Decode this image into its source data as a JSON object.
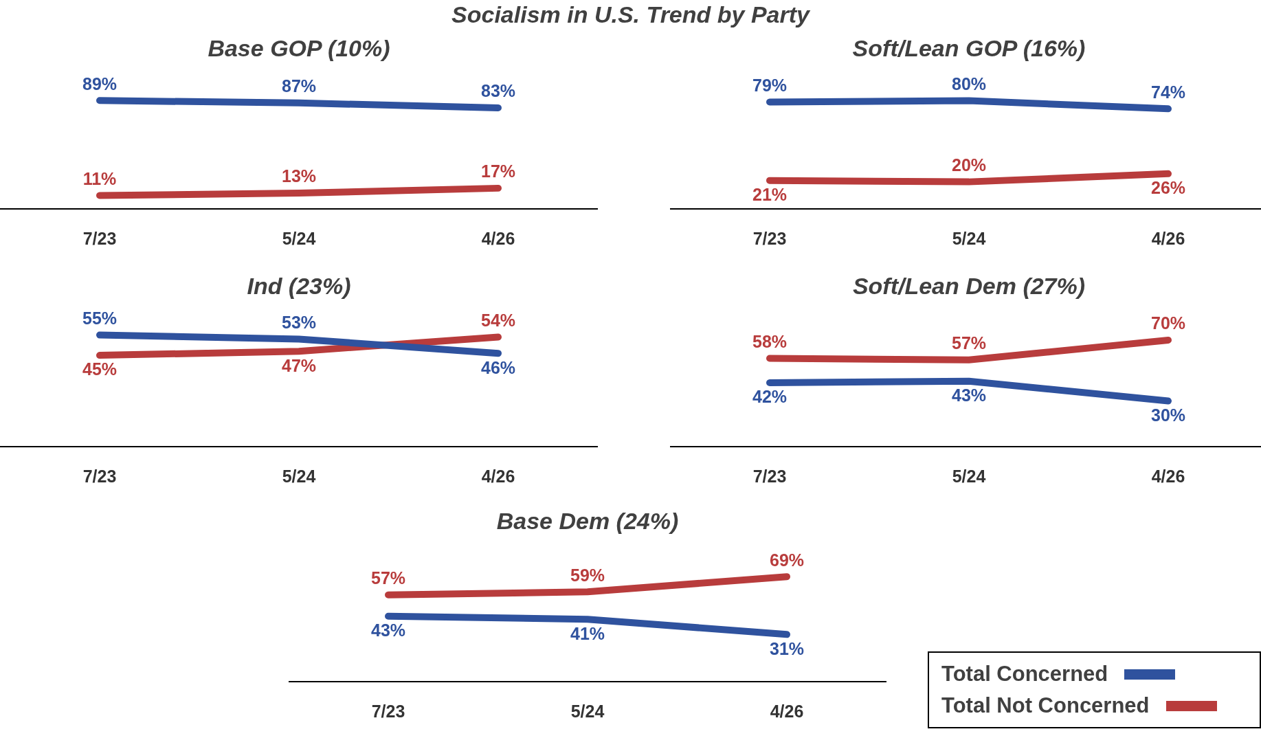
{
  "chart_data": [
    {
      "type": "line",
      "title": "Base GOP (10%)",
      "annotations": [
        "Socialism in U.S. Trend by Party"
      ],
      "categories": [
        "7/23",
        "5/24",
        "4/26"
      ],
      "tick_labels": "x",
      "grid": false,
      "series": [
        {
          "color": "#2f529e",
          "values": [
            89,
            87,
            83
          ],
          "value_labels": [
            "89%",
            "87%",
            "83%"
          ]
        },
        {
          "color": "#b83c3c",
          "values": [
            11,
            13,
            17
          ],
          "value_labels": [
            "11%",
            "13%",
            "17%"
          ]
        }
      ]
    },
    {
      "type": "line",
      "title": "Soft/Lean GOP (16%)",
      "categories": [
        "7/23",
        "5/24",
        "4/26"
      ],
      "tick_labels": "x",
      "grid": false,
      "series": [
        {
          "color": "#2f529e",
          "values": [
            79,
            80,
            74
          ],
          "value_labels": [
            "79%",
            "80%",
            "74%"
          ]
        },
        {
          "color": "#b83c3c",
          "values": [
            21,
            20,
            26
          ],
          "value_labels": [
            "21%",
            "20%",
            "26%"
          ]
        }
      ]
    },
    {
      "type": "line",
      "title": "Ind (23%)",
      "categories": [
        "7/23",
        "5/24",
        "4/26"
      ],
      "tick_labels": "x",
      "grid": false,
      "series": [
        {
          "color": "#2f529e",
          "values": [
            55,
            53,
            46
          ],
          "value_labels": [
            "55%",
            "53%",
            "46%"
          ]
        },
        {
          "color": "#b83c3c",
          "values": [
            45,
            47,
            54
          ],
          "value_labels": [
            "45%",
            "47%",
            "54%"
          ]
        }
      ]
    },
    {
      "type": "line",
      "title": "Soft/Lean Dem (27%)",
      "categories": [
        "7/23",
        "5/24",
        "4/26"
      ],
      "tick_labels": "x",
      "grid": false,
      "series": [
        {
          "color": "#2f529e",
          "values": [
            42,
            43,
            30
          ],
          "value_labels": [
            "42%",
            "43%",
            "30%"
          ]
        },
        {
          "color": "#b83c3c",
          "values": [
            58,
            57,
            70
          ],
          "value_labels": [
            "58%",
            "57%",
            "70%"
          ]
        }
      ]
    },
    {
      "type": "line",
      "title": "Base Dem (24%)",
      "categories": [
        "7/23",
        "5/24",
        "4/26"
      ],
      "tick_labels": "x",
      "grid": false,
      "legend": "right",
      "series": [
        {
          "name": "Total Concerned",
          "color": "#2f529e",
          "values": [
            43,
            41,
            31
          ],
          "value_labels": [
            "43%",
            "41%",
            "31%"
          ]
        },
        {
          "name": "Total Not Concerned",
          "color": "#b83c3c",
          "values": [
            57,
            59,
            69
          ],
          "value_labels": [
            "57%",
            "59%",
            "69%"
          ]
        }
      ]
    }
  ]
}
